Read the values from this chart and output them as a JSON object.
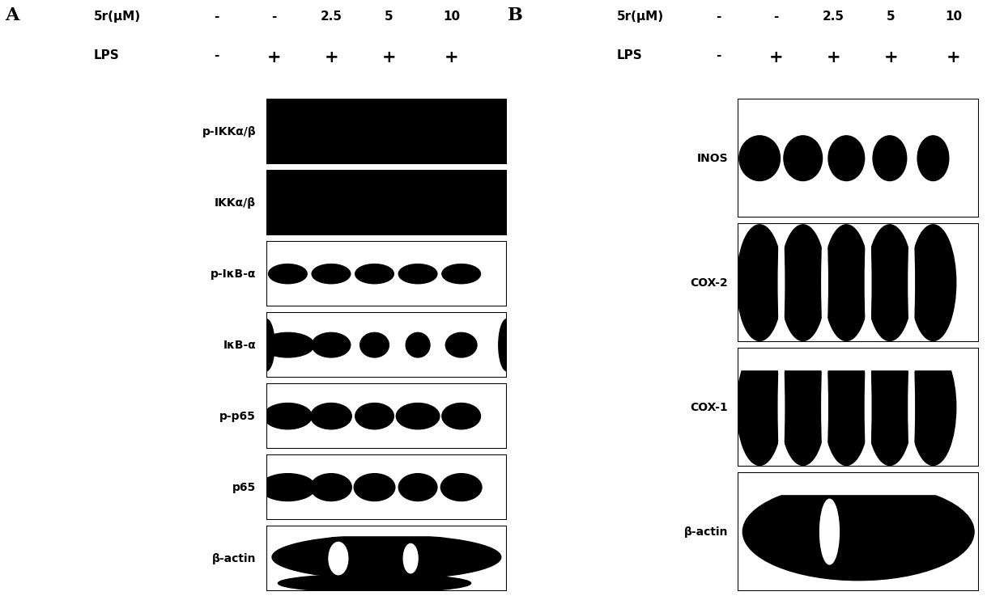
{
  "fig_width": 12.4,
  "fig_height": 7.42,
  "dpi": 100,
  "background": "#ffffff",
  "panel_A": {
    "label": "A",
    "concentrations": [
      "-",
      "-",
      "2.5",
      "5",
      "10"
    ],
    "lps_vals": [
      "-",
      "+",
      "+",
      "+",
      "+"
    ],
    "blot_labels": [
      "p-IKKα/β",
      "IKKα/β",
      "p-IκB-α",
      "IκB-α",
      "p-p65",
      "p65",
      "β-actin"
    ]
  },
  "panel_B": {
    "label": "B",
    "concentrations": [
      "-",
      "-",
      "2.5",
      "5",
      "10"
    ],
    "lps_vals": [
      "-",
      "+",
      "+",
      "+",
      "+"
    ],
    "blot_labels": [
      "INOS",
      "COX-2",
      "COX-1",
      "β-actin"
    ]
  }
}
